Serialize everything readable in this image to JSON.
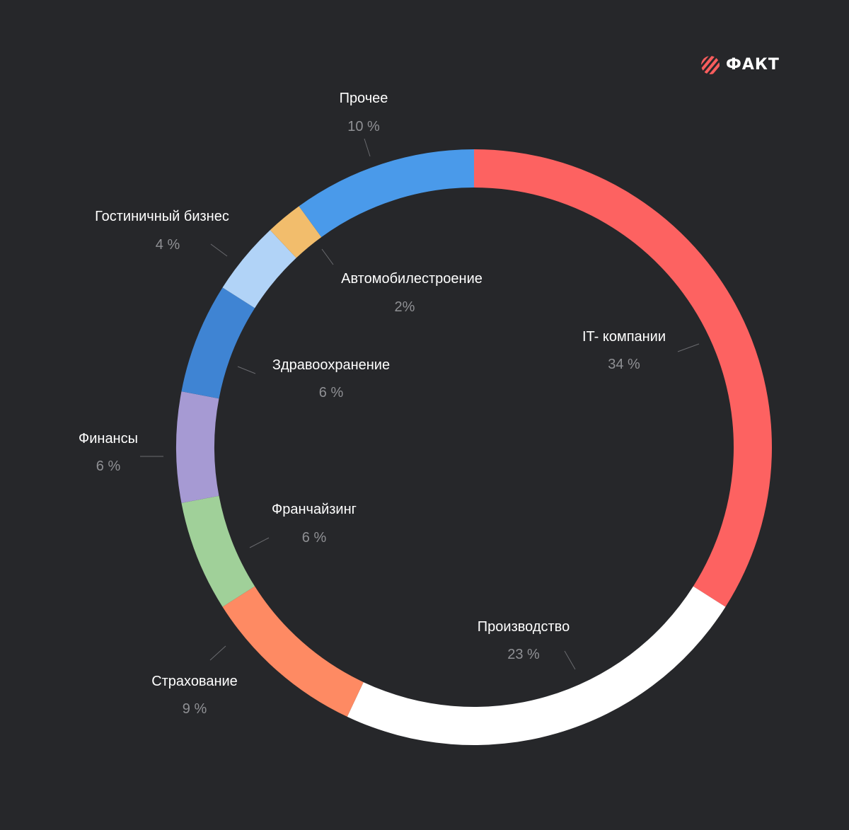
{
  "brand": {
    "logo_text": "ФАКТ",
    "logo_color": "#f85d5d"
  },
  "chart_data": {
    "type": "pie",
    "style": "donut",
    "background": "#26272a",
    "slices": [
      {
        "label": "IT- компании",
        "value_label": "34 %",
        "value": 34,
        "color": "#fd6261"
      },
      {
        "label": "Производство",
        "value_label": "23 %",
        "value": 23,
        "color": "#ffffff"
      },
      {
        "label": "Страхование",
        "value_label": "9 %",
        "value": 9,
        "color": "#fe8a63"
      },
      {
        "label": "Франчайзинг",
        "value_label": "6 %",
        "value": 6,
        "color": "#a0d099"
      },
      {
        "label": "Финансы",
        "value_label": "6 %",
        "value": 6,
        "color": "#a69ad3"
      },
      {
        "label": "Здравоохранение",
        "value_label": "6 %",
        "value": 6,
        "color": "#3f84d3"
      },
      {
        "label": "Гостиничный бизнес",
        "value_label": "4 %",
        "value": 4,
        "color": "#b1d3f7"
      },
      {
        "label": "Автомобилестроение",
        "value_label": "2%",
        "value": 2,
        "color": "#f2bd6c"
      },
      {
        "label": "Прочее",
        "value_label": "10 %",
        "value": 10,
        "color": "#4a9aea"
      }
    ]
  }
}
